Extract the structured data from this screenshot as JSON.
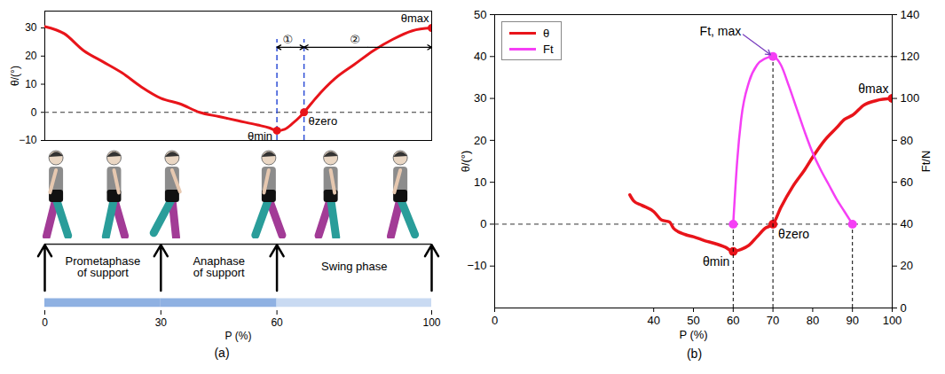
{
  "chart_data": [
    {
      "type": "line",
      "title": "(a)",
      "xlabel": "P (%)",
      "ylabel": "θ/(°)",
      "xlim": [
        0,
        100
      ],
      "xticks": [
        0,
        30,
        60,
        100
      ],
      "ylim": [
        -10,
        36
      ],
      "yticks": [
        -10,
        0,
        10,
        20,
        30
      ],
      "color": "#e8141a",
      "x": [
        0,
        5,
        10,
        15,
        20,
        25,
        30,
        35,
        40,
        45,
        50,
        55,
        58,
        60,
        62,
        64,
        66,
        67,
        70,
        75,
        80,
        85,
        90,
        95,
        100
      ],
      "values": [
        30.5,
        28,
        22,
        18,
        14,
        9,
        5,
        3,
        0,
        -1.5,
        -3,
        -4.5,
        -5.5,
        -6.5,
        -6,
        -4,
        -1.5,
        0,
        5,
        12,
        17,
        22,
        26,
        29,
        30
      ],
      "hlines": [
        0
      ],
      "points": [
        {
          "label": "θmin",
          "x": 60,
          "y": -6.5
        },
        {
          "label": "θzero",
          "x": 67,
          "y": 0
        },
        {
          "label": "θmax",
          "x": 100,
          "y": 30
        }
      ],
      "intervals": [
        {
          "label": "①",
          "start": 60,
          "end": 67
        },
        {
          "label": "②",
          "start": 67,
          "end": 100
        }
      ],
      "phases": [
        {
          "label": "Prometaphase of support",
          "start": 0,
          "end": 30,
          "color": "#8fb1e2"
        },
        {
          "label": "Anaphase of support",
          "start": 30,
          "end": 60,
          "color": "#8fb1e2"
        },
        {
          "label": "Swing phase",
          "start": 60,
          "end": 100,
          "color": "#c9daf2"
        }
      ]
    },
    {
      "type": "line",
      "title": "(b)",
      "xlabel": "P (%)",
      "ylabel": "θ/(°)",
      "y2label": "Ft/N",
      "xlim": [
        0,
        100
      ],
      "xticks": [
        0,
        40,
        50,
        60,
        70,
        80,
        90,
        100
      ],
      "ylim": [
        -20,
        50
      ],
      "yticks": [
        -10,
        0,
        10,
        20,
        30,
        40,
        50
      ],
      "y2lim": [
        0,
        140
      ],
      "y2ticks": [
        0,
        20,
        40,
        60,
        80,
        100,
        120,
        140
      ],
      "legend": "top-left",
      "hlines": [
        0
      ],
      "series": [
        {
          "name": "θ",
          "color": "#e8141a",
          "x": [
            34,
            35,
            37,
            40,
            42,
            44,
            45,
            48,
            50,
            53,
            55,
            58,
            60,
            62,
            64,
            66,
            68,
            70,
            72,
            75,
            78,
            80,
            83,
            86,
            88,
            90,
            93,
            96,
            100
          ],
          "values": [
            7,
            5.5,
            4.5,
            3,
            1,
            0.5,
            -1,
            -2.5,
            -3,
            -4,
            -4.5,
            -5.5,
            -6.5,
            -6,
            -5,
            -3,
            -1,
            0,
            4,
            9,
            13,
            16,
            20,
            23,
            25,
            26,
            28.5,
            29.5,
            30
          ]
        },
        {
          "name": "Ft",
          "color": "#f53ff5",
          "axis": "y2",
          "x": [
            60,
            61,
            62,
            64,
            66,
            68,
            70,
            72,
            74,
            76,
            78,
            80,
            82,
            84,
            86,
            88,
            90
          ],
          "values": [
            40,
            70,
            90,
            108,
            116,
            119,
            120,
            116,
            106,
            95,
            84,
            74,
            66,
            59,
            52,
            46,
            40
          ]
        }
      ],
      "points": [
        {
          "label": "θmin",
          "x": 60,
          "y": -6.5
        },
        {
          "label": "θzero",
          "x": 70,
          "y": 0
        },
        {
          "label": "θmax",
          "x": 100,
          "y": 30
        }
      ],
      "y2_points": [
        {
          "x": 60,
          "y": 40
        },
        {
          "label": "Ft, max",
          "x": 70,
          "y": 120
        },
        {
          "x": 90,
          "y": 40
        }
      ]
    }
  ]
}
